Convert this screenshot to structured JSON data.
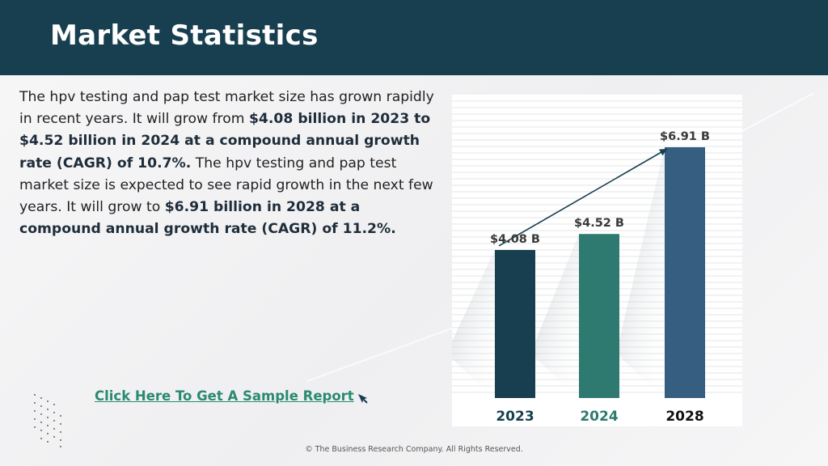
{
  "header": {
    "title": "Market Statistics"
  },
  "body": {
    "p1": "The hpv testing and pap test market size has grown rapidly in recent years. It will grow from ",
    "b1": "$4.08 billion in 2023 to $4.52 billion in 2024 at a compound annual growth rate (CAGR) of 10.7%.",
    "p2": "  The hpv testing and pap test market size is expected to see rapid growth in the next few years. It will grow to ",
    "b2": "$6.91 billion in 2028 at a compound annual growth rate (CAGR) of 11.2%."
  },
  "cta": {
    "label": "Click Here To Get A Sample Report"
  },
  "footer": {
    "text": "© The Business Research Company. All Rights Reserved."
  },
  "chart_data": {
    "type": "bar",
    "categories": [
      "2023",
      "2024",
      "2028"
    ],
    "values": [
      4.08,
      4.52,
      6.91
    ],
    "value_labels": [
      "$4.08  B",
      "$4.52  B",
      "$6.91  B"
    ],
    "colors": [
      "#173f4f",
      "#2f7a70",
      "#365e80"
    ],
    "category_label_colors": [
      "#173f4f",
      "#2f7a70",
      "#111111"
    ],
    "trend_arrow": true,
    "grid": true
  }
}
